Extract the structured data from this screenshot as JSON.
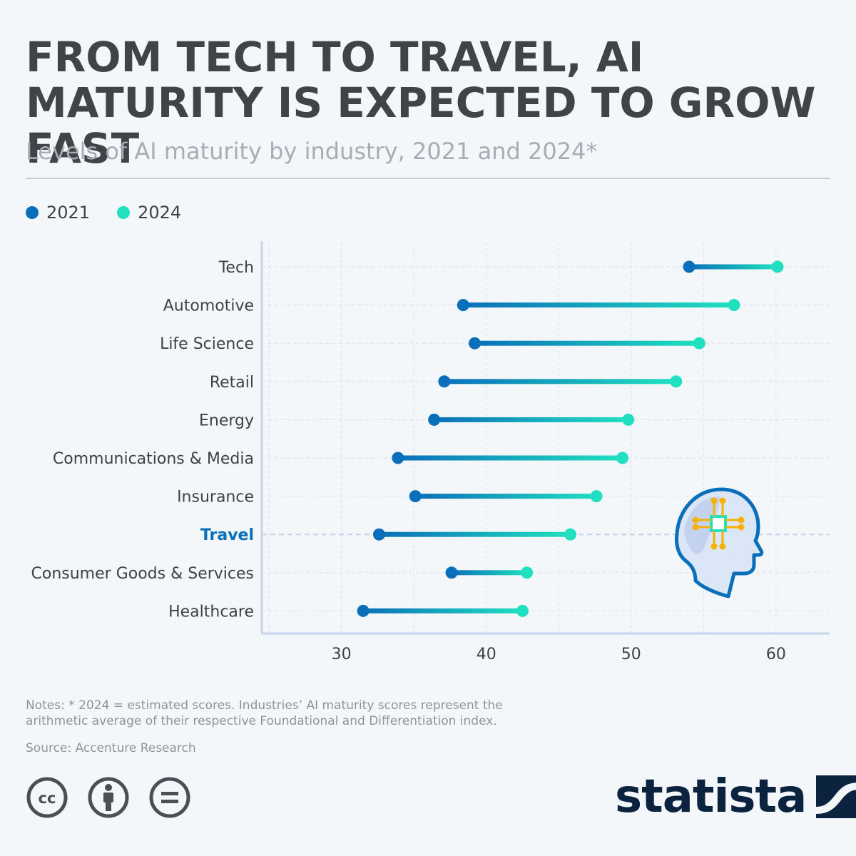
{
  "header": {
    "title": "FROM TECH TO TRAVEL, AI MATURITY IS EXPECTED TO GROW FAST",
    "subtitle": "Levels of AI maturity by industry, 2021 and 2024*"
  },
  "legend": [
    {
      "label": "2021",
      "color": "#0a6fba"
    },
    {
      "label": "2024",
      "color": "#21e0c0"
    }
  ],
  "chart_data": {
    "type": "dumbbell",
    "categories": [
      "Tech",
      "Automotive",
      "Life Science",
      "Retail",
      "Energy",
      "Communications & Media",
      "Insurance",
      "Travel",
      "Consumer Goods & Services",
      "Healthcare"
    ],
    "highlight": "Travel",
    "series": [
      {
        "name": "2021",
        "values": [
          54.0,
          38.4,
          39.2,
          37.1,
          36.4,
          33.9,
          35.1,
          32.6,
          37.6,
          31.5
        ]
      },
      {
        "name": "2024",
        "values": [
          60.1,
          57.1,
          54.7,
          53.1,
          49.8,
          49.4,
          47.6,
          45.8,
          42.8,
          42.5
        ]
      }
    ],
    "xlim": [
      24.5,
      63.7
    ],
    "xticks": [
      30,
      40,
      50,
      60
    ],
    "grid": true,
    "legend_position": "top-left",
    "colors": {
      "start": "#0a6fba",
      "end": "#21e0c0",
      "highlight_label": "#0a6fba",
      "grid": "#d9dfe8"
    }
  },
  "footer": {
    "notes": "Notes: * 2024 = estimated scores. Industries’ AI maturity scores represent the arithmetic average of their respective Foundational and Differentiation index.",
    "source": "Source: Accenture Research",
    "brand": "statista",
    "license_icons": [
      "cc-icon",
      "attribution-icon",
      "no-derivatives-icon"
    ]
  }
}
